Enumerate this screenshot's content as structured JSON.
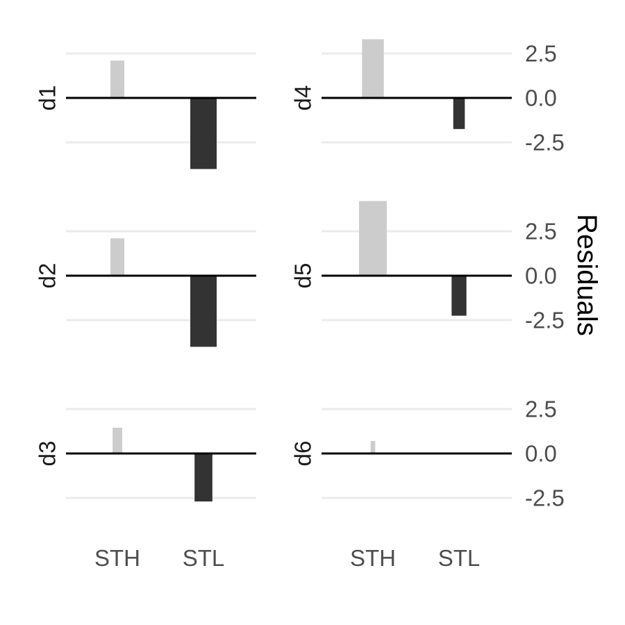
{
  "chart_data": {
    "type": "bar",
    "layout": "faceted grid, 3 rows x 2 columns, shared axes",
    "categories": [
      "STH",
      "STL"
    ],
    "ylabel": "Residuals",
    "ylabel_position": "right",
    "y_ticks": [
      "2.5",
      "0.0",
      "-2.5"
    ],
    "y_tick_values": [
      2.5,
      0.0,
      -2.5
    ],
    "ylim": [
      -3.5,
      3.5
    ],
    "grid": "horizontal major gridlines",
    "encoding": "bar width proportional to magnitude; fill shade by sign (positive light grey, negative dark grey)",
    "colors": {
      "positive": "#cccccc",
      "negative": "#333333",
      "zero_line": "#000000",
      "grid": "#ebebeb"
    },
    "facets": [
      {
        "label": "d1",
        "values": [
          2.1,
          -4.0
        ]
      },
      {
        "label": "d2",
        "values": [
          2.1,
          -4.0
        ]
      },
      {
        "label": "d3",
        "values": [
          1.45,
          -2.7
        ]
      },
      {
        "label": "d4",
        "values": [
          3.3,
          -1.75
        ]
      },
      {
        "label": "d5",
        "values": [
          4.2,
          -2.25
        ]
      },
      {
        "label": "d6",
        "values": [
          0.7,
          0.0
        ]
      }
    ]
  }
}
